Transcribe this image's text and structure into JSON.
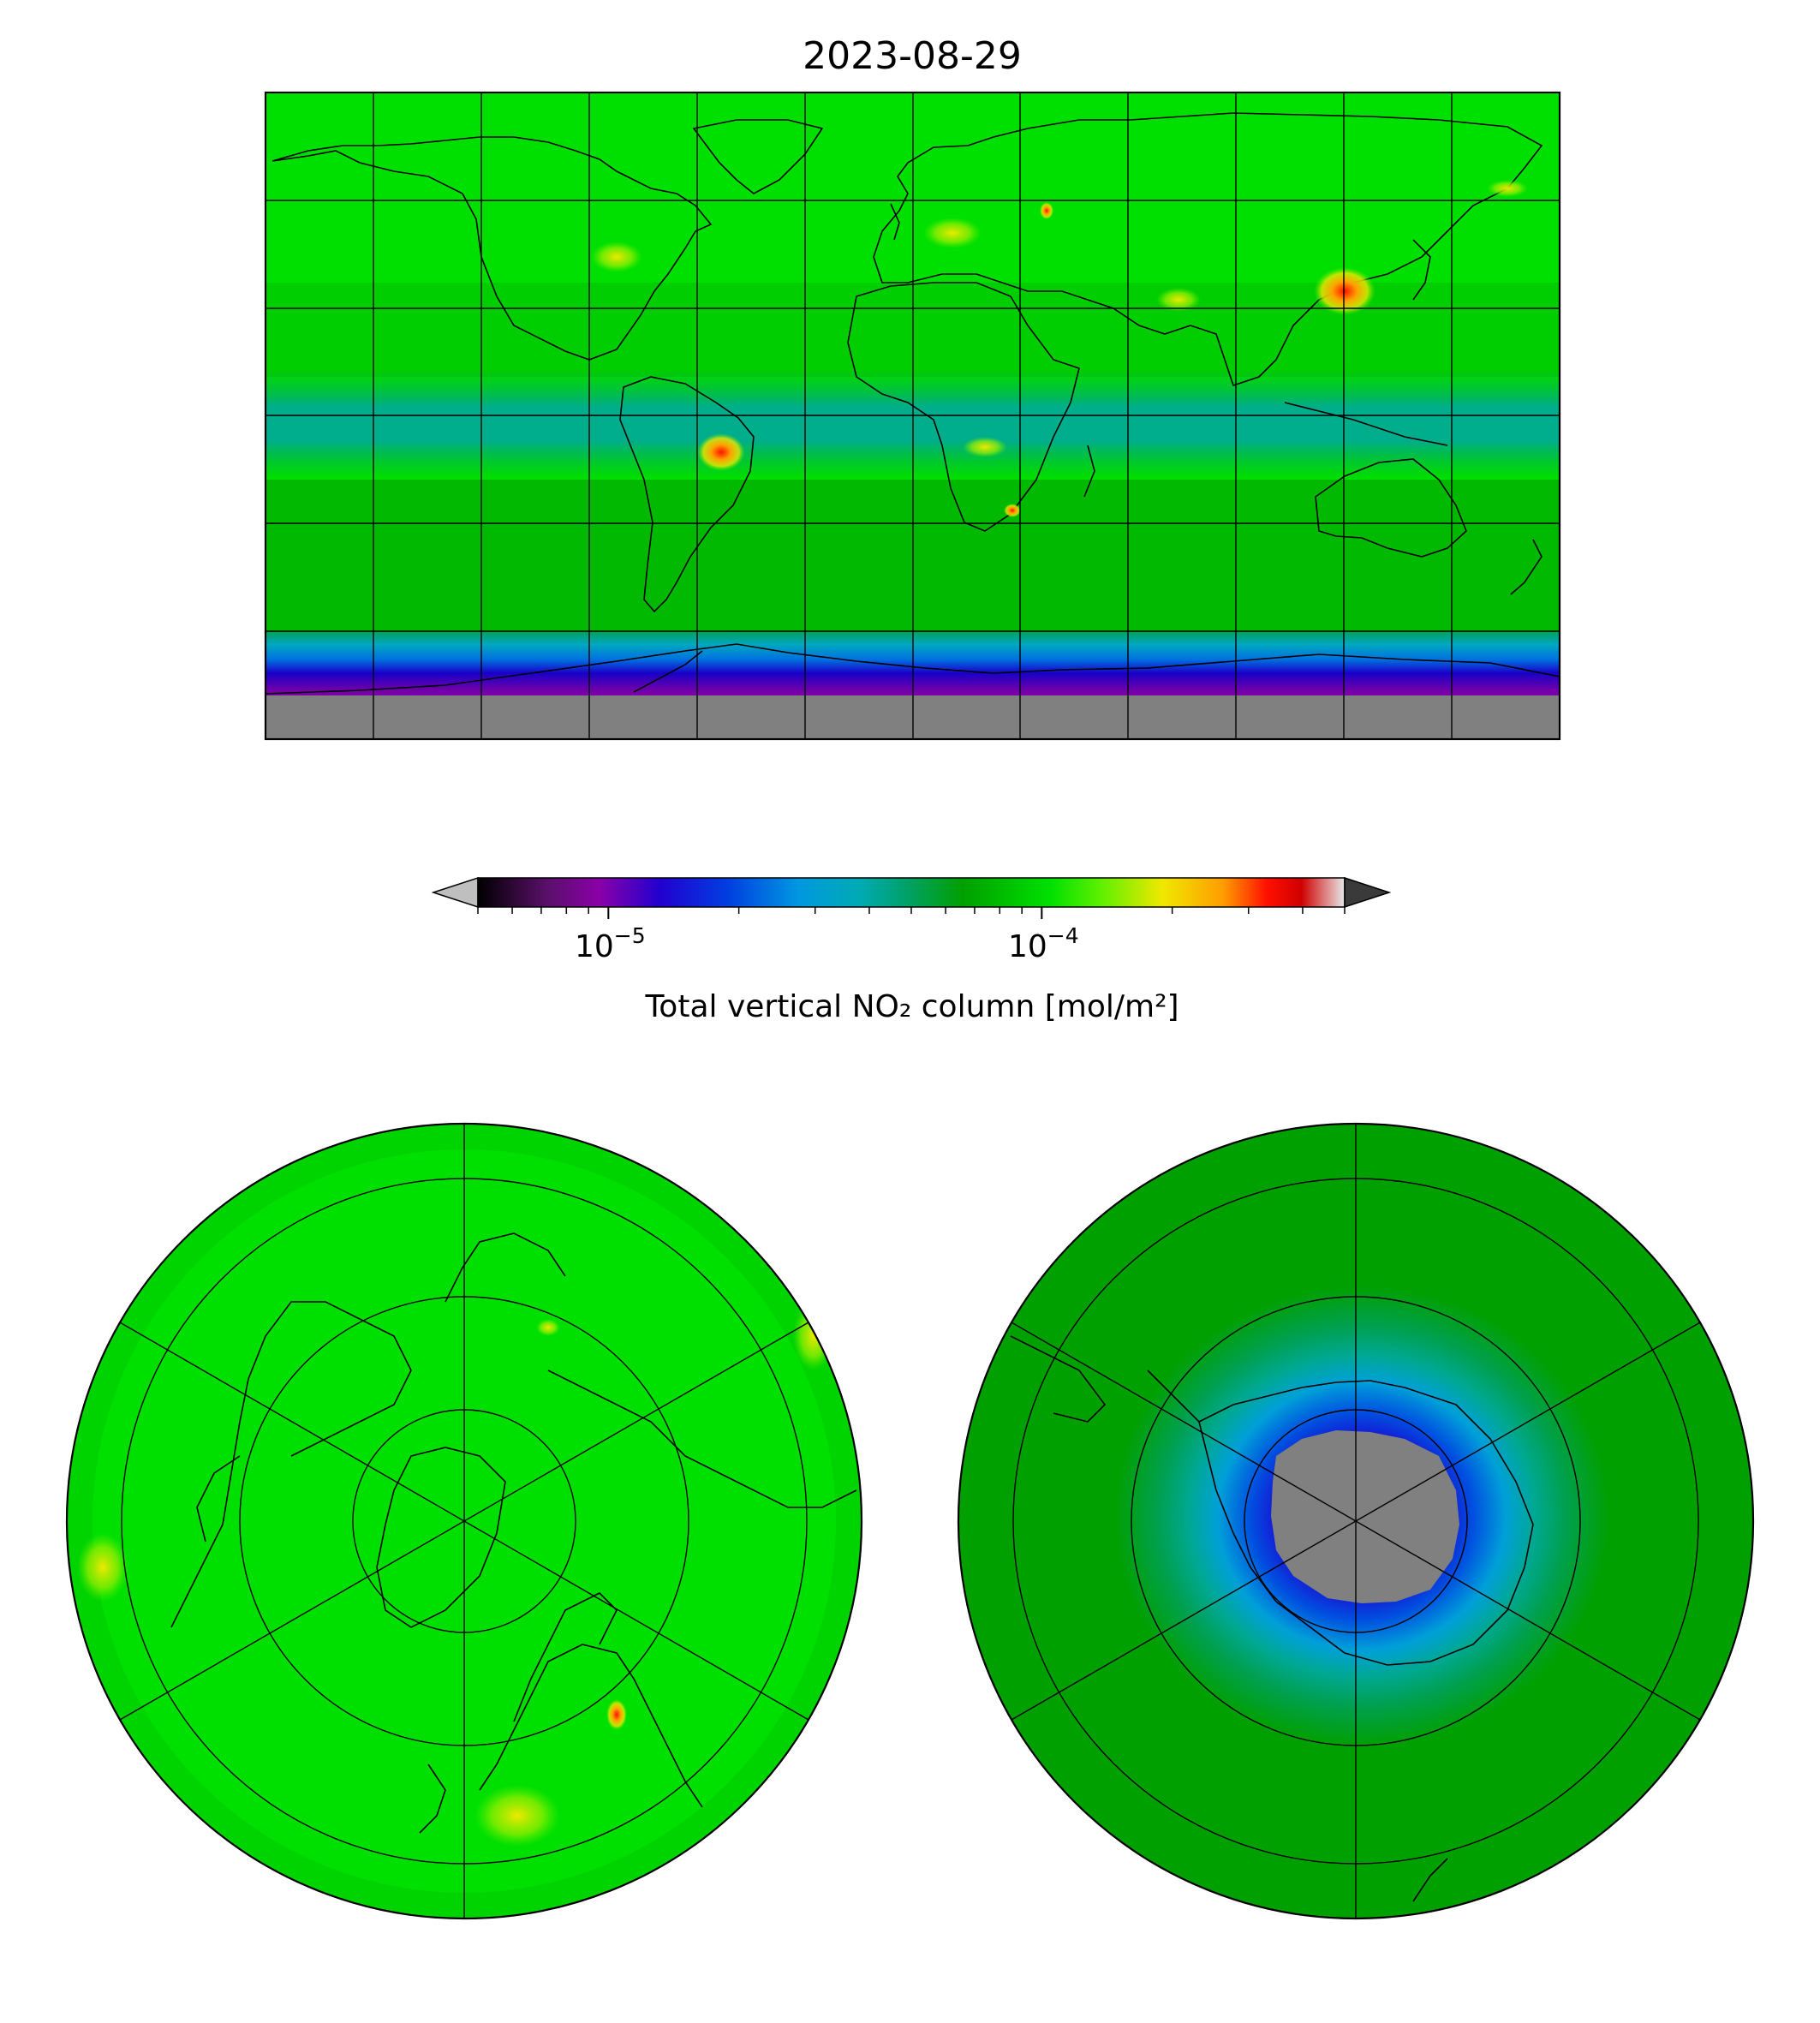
{
  "figure": {
    "title": "2023-08-29"
  },
  "colorbar": {
    "label": "Total vertical NO₂ column [mol/m²]",
    "scale": "log",
    "range": [
      5e-06,
      0.0005
    ],
    "extend": "both",
    "under_color": "#bfbfbf",
    "over_color": "#3a3a3a",
    "ticks": [
      {
        "value": 1e-05,
        "base": "10",
        "exp": "−5"
      },
      {
        "value": 0.0001,
        "base": "10",
        "exp": "−4"
      }
    ],
    "minor_ticks": [
      5e-06,
      6e-06,
      7e-06,
      8e-06,
      9e-06,
      2e-05,
      3e-05,
      4e-05,
      5e-05,
      6e-05,
      7e-05,
      8e-05,
      9e-05,
      0.0002,
      0.0003,
      0.0004,
      0.0005
    ],
    "stops": [
      {
        "pos": 0.0,
        "color": "#000000"
      },
      {
        "pos": 0.08,
        "color": "#5a0f6a"
      },
      {
        "pos": 0.14,
        "color": "#8a00a8"
      },
      {
        "pos": 0.21,
        "color": "#2200d0"
      },
      {
        "pos": 0.29,
        "color": "#0040e0"
      },
      {
        "pos": 0.37,
        "color": "#0098e0"
      },
      {
        "pos": 0.44,
        "color": "#00aab4"
      },
      {
        "pos": 0.5,
        "color": "#00a060"
      },
      {
        "pos": 0.56,
        "color": "#00a000"
      },
      {
        "pos": 0.66,
        "color": "#00e000"
      },
      {
        "pos": 0.72,
        "color": "#60f000"
      },
      {
        "pos": 0.79,
        "color": "#f0e800"
      },
      {
        "pos": 0.86,
        "color": "#ff9c00"
      },
      {
        "pos": 0.91,
        "color": "#ff1000"
      },
      {
        "pos": 0.95,
        "color": "#d00000"
      },
      {
        "pos": 1.0,
        "color": "#e8e8e8"
      }
    ]
  },
  "maps": {
    "global": {
      "projection": "equirectangular",
      "background": "#00e000",
      "nodata_color": "#808080"
    },
    "north_polar": {
      "projection": "north-polar-stereographic",
      "background": "#00e000"
    },
    "south_polar": {
      "projection": "south-polar-stereographic",
      "background": "#00a000",
      "nodata_color": "#808080"
    }
  }
}
